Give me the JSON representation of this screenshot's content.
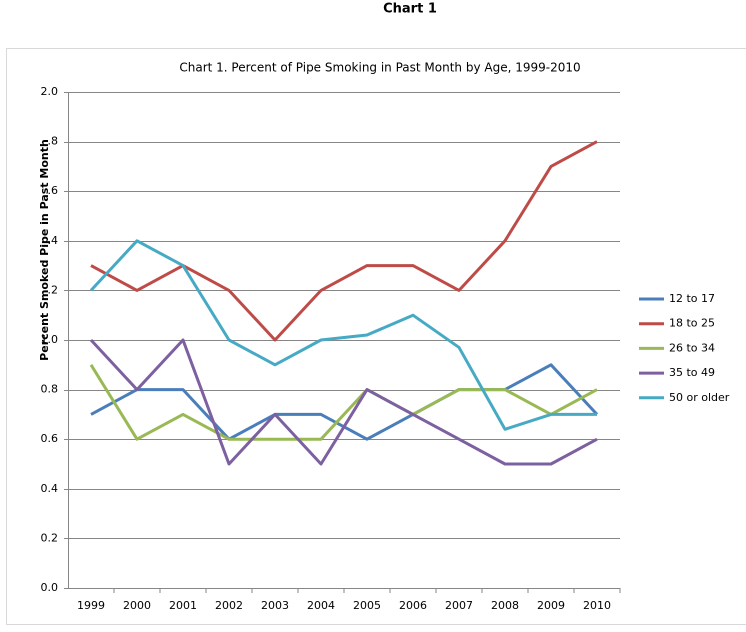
{
  "page_title": "Chart 1",
  "chart_data": {
    "type": "line",
    "title": "Chart 1. Percent of Pipe Smoking in Past Month by Age, 1999-2010",
    "y_label": "Percent Smoked Pipe in Past Month",
    "categories": [
      "1999",
      "2000",
      "2001",
      "2002",
      "2003",
      "2004",
      "2005",
      "2006",
      "2007",
      "2008",
      "2009",
      "2010"
    ],
    "ylim": [
      0,
      2.0
    ],
    "yticks": [
      {
        "value": 0,
        "label": "0.0"
      },
      0.2,
      0.4,
      0.6,
      0.8,
      {
        "value": 1.0,
        "label": "1.0"
      },
      {
        "value": 1.2,
        "label": ".2"
      },
      {
        "value": 1.4,
        "label": ".4"
      },
      {
        "value": 1.6,
        "label": ".6"
      },
      {
        "value": 1.8,
        "label": ".8"
      },
      {
        "value": 2.0,
        "label": "2.0"
      }
    ],
    "grid": true,
    "legend": "right",
    "series": [
      {
        "name": "12 to 17",
        "color": "#4a7ebb",
        "values": [
          0.7,
          0.8,
          0.8,
          0.6,
          0.7,
          0.7,
          0.6,
          0.7,
          0.8,
          0.8,
          0.9,
          0.7
        ]
      },
      {
        "name": "18 to 25",
        "color": "#be4b48",
        "values": [
          1.3,
          1.2,
          1.3,
          1.2,
          1.0,
          1.2,
          1.3,
          1.3,
          1.2,
          1.4,
          1.7,
          1.8
        ]
      },
      {
        "name": "26 to 34",
        "color": "#98b954",
        "values": [
          0.9,
          0.6,
          0.7,
          0.6,
          0.6,
          0.6,
          0.8,
          0.7,
          0.8,
          0.8,
          0.7,
          0.8
        ]
      },
      {
        "name": "35 to 49",
        "color": "#7d60a0",
        "values": [
          1.0,
          0.8,
          1.0,
          0.5,
          0.7,
          0.5,
          0.8,
          0.7,
          0.6,
          0.5,
          0.5,
          0.6
        ]
      },
      {
        "name": "50 or older",
        "color": "#46aac5",
        "values": [
          1.2,
          1.4,
          1.3,
          1.0,
          0.9,
          1.0,
          1.02,
          1.1,
          0.97,
          0.64,
          0.7,
          0.7
        ]
      }
    ]
  }
}
